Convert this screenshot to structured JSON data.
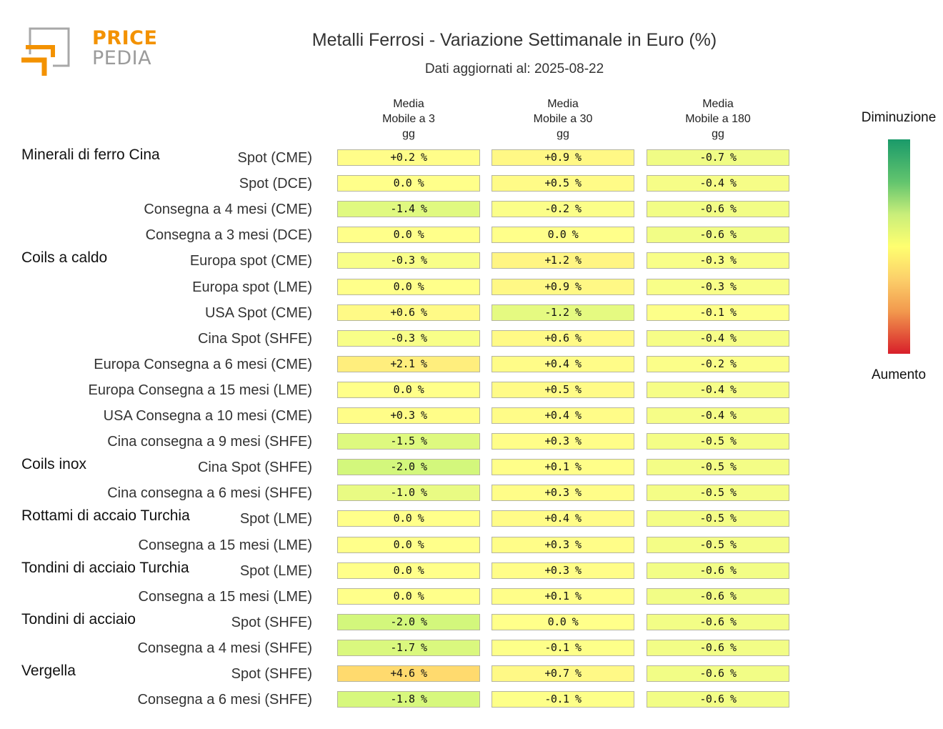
{
  "logo": {
    "word_1": "PRICE",
    "word_2": "PEDIA"
  },
  "title": "Metalli Ferrosi - Variazione Settimanale in Euro (%)",
  "subtitle": "Dati aggiornati al: 2025-08-22",
  "legend": {
    "top": "Diminuzione",
    "bottom": "Aumento",
    "colors": [
      "#1a9a6a",
      "#ffff70",
      "#d81f2a"
    ]
  },
  "chart_data": {
    "type": "table",
    "title": "Metalli Ferrosi - Variazione Settimanale in Euro (%)",
    "subtitle": "Dati aggiornati al: 2025-08-22",
    "columns": [
      "Media\nMobile a 3\ngg",
      "Media\nMobile a 30\ngg",
      "Media\nMobile a 180\ngg"
    ],
    "groups": [
      {
        "name": "Minerali di ferro Cina",
        "rows": [
          {
            "label": "Spot (CME)",
            "values": [
              0.2,
              0.9,
              -0.7
            ]
          },
          {
            "label": "Spot (DCE)",
            "values": [
              0.0,
              0.5,
              -0.4
            ]
          },
          {
            "label": "Consegna a 4 mesi (CME)",
            "values": [
              -1.4,
              -0.2,
              -0.6
            ]
          },
          {
            "label": "Consegna a 3 mesi (DCE)",
            "values": [
              0.0,
              0.0,
              -0.6
            ]
          }
        ]
      },
      {
        "name": "Coils a caldo",
        "rows": [
          {
            "label": "Europa spot (CME)",
            "values": [
              -0.3,
              1.2,
              -0.3
            ]
          },
          {
            "label": "Europa spot (LME)",
            "values": [
              0.0,
              0.9,
              -0.3
            ]
          },
          {
            "label": "USA Spot (CME)",
            "values": [
              0.6,
              -1.2,
              -0.1
            ]
          },
          {
            "label": "Cina Spot (SHFE)",
            "values": [
              -0.3,
              0.6,
              -0.4
            ]
          },
          {
            "label": "Europa Consegna a 6 mesi (CME)",
            "values": [
              2.1,
              0.4,
              -0.2
            ]
          },
          {
            "label": "Europa Consegna a 15 mesi (LME)",
            "values": [
              0.0,
              0.5,
              -0.4
            ]
          },
          {
            "label": "USA Consegna a 10 mesi (CME)",
            "values": [
              0.3,
              0.4,
              -0.4
            ]
          },
          {
            "label": "Cina consegna a 9 mesi (SHFE)",
            "values": [
              -1.5,
              0.3,
              -0.5
            ]
          }
        ]
      },
      {
        "name": "Coils inox",
        "rows": [
          {
            "label": "Cina Spot (SHFE)",
            "values": [
              -2.0,
              0.1,
              -0.5
            ]
          },
          {
            "label": "Cina consegna a 6 mesi (SHFE)",
            "values": [
              -1.0,
              0.3,
              -0.5
            ]
          }
        ]
      },
      {
        "name": "Rottami di accaio Turchia",
        "rows": [
          {
            "label": "Spot (LME)",
            "values": [
              0.0,
              0.4,
              -0.5
            ]
          },
          {
            "label": "Consegna a 15 mesi (LME)",
            "values": [
              0.0,
              0.3,
              -0.5
            ]
          }
        ]
      },
      {
        "name": "Tondini di acciaio Turchia",
        "rows": [
          {
            "label": "Spot (LME)",
            "values": [
              0.0,
              0.3,
              -0.6
            ]
          },
          {
            "label": "Consegna a 15 mesi (LME)",
            "values": [
              0.0,
              0.1,
              -0.6
            ]
          }
        ]
      },
      {
        "name": "Tondini di acciaio",
        "rows": [
          {
            "label": "Spot (SHFE)",
            "values": [
              -2.0,
              0.0,
              -0.6
            ]
          },
          {
            "label": "Consegna a 4 mesi (SHFE)",
            "values": [
              -1.7,
              -0.1,
              -0.6
            ]
          }
        ]
      },
      {
        "name": "Vergella",
        "rows": [
          {
            "label": "Spot (SHFE)",
            "values": [
              4.6,
              0.7,
              -0.6
            ]
          },
          {
            "label": "Consegna a 6 mesi (SHFE)",
            "values": [
              -1.8,
              -0.1,
              -0.6
            ]
          }
        ]
      }
    ]
  }
}
